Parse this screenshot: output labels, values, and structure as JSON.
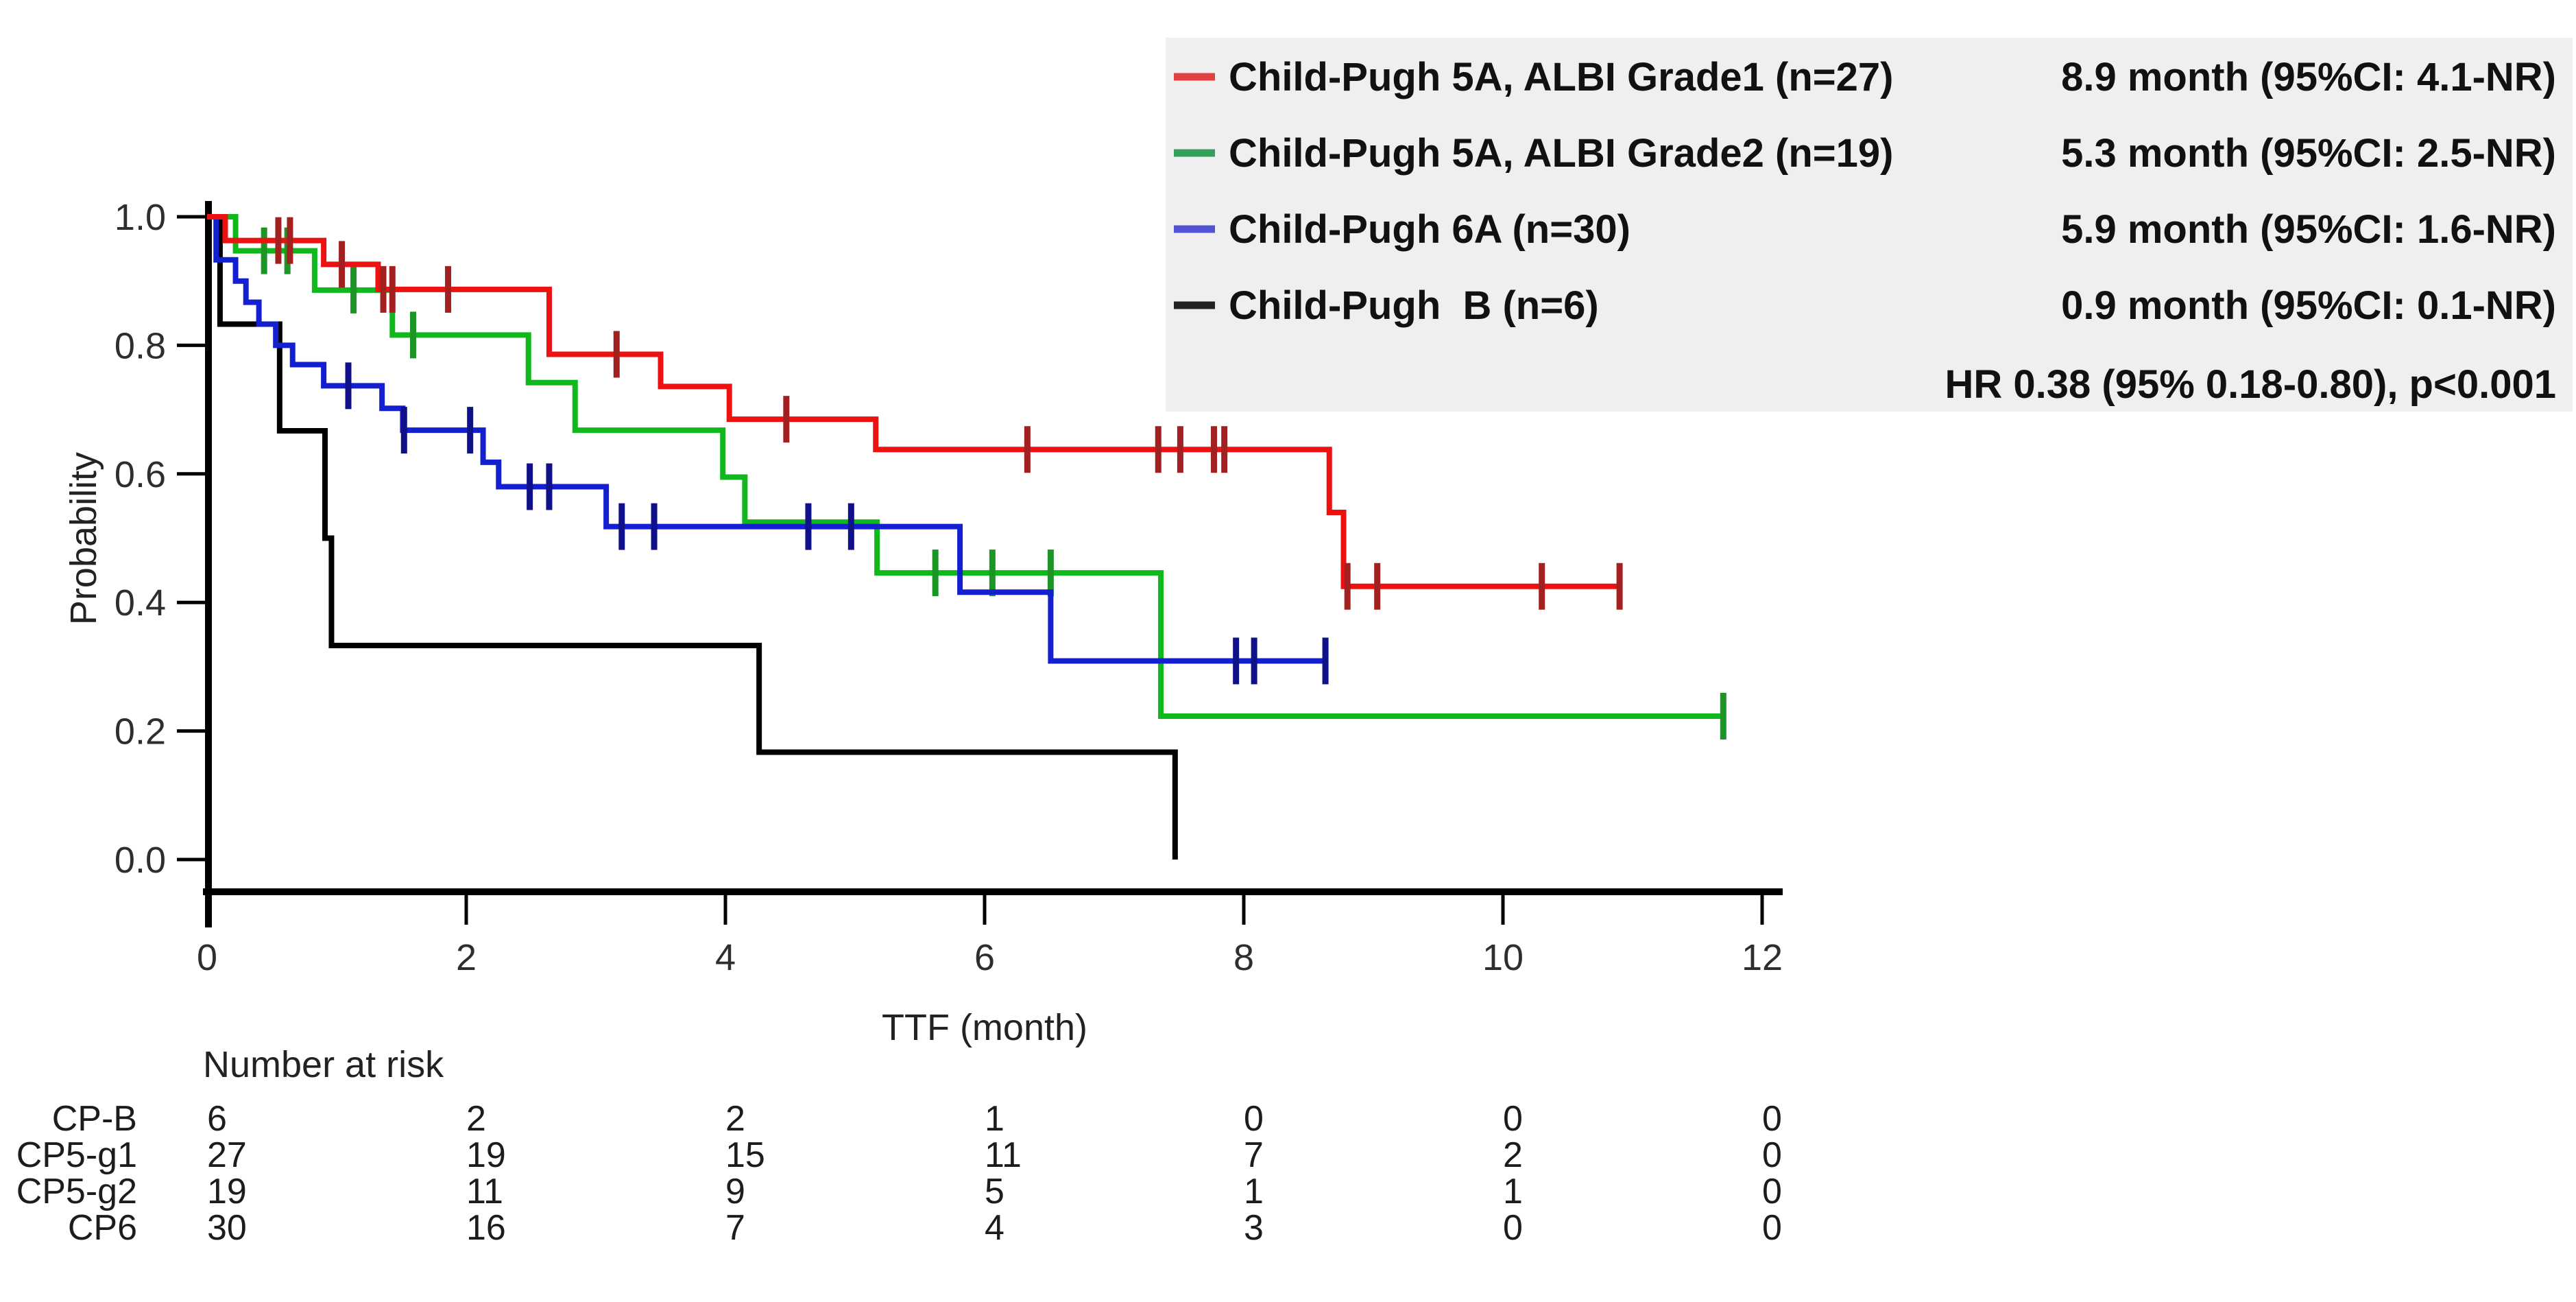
{
  "chart_data": {
    "type": "line",
    "subtype": "kaplan_meier_step",
    "title": "",
    "xlabel": "TTF (month)",
    "ylabel": "Probability",
    "xlim": [
      0,
      12
    ],
    "ylim": [
      0.0,
      1.0
    ],
    "x_ticks": [
      0,
      2,
      4,
      6,
      8,
      10,
      12
    ],
    "y_ticks": [
      "0.0",
      "0.2",
      "0.4",
      "0.6",
      "0.8",
      "1.0"
    ],
    "grid": false,
    "legend_position": "top-right",
    "legend_bg": "#efefef",
    "hr_annotation": "HR 0.38 (95% 0.18-0.80), p<0.001",
    "series": [
      {
        "name": "Child-Pugh 5A, ALBI Grade1 (n=27)",
        "short_name": "CP5-g1",
        "color": "#ec1212",
        "censor_color": "#a32020",
        "legend_swatch_color": "#e04040",
        "median_text": "8.9 month (95%CI: 4.1-NR)",
        "steps": [
          [
            0,
            1.0
          ],
          [
            0.14,
            0.963
          ],
          [
            0.9,
            0.926
          ],
          [
            1.32,
            0.887
          ],
          [
            2.64,
            0.786
          ],
          [
            3.5,
            0.736
          ],
          [
            4.03,
            0.685
          ],
          [
            5.16,
            0.638
          ],
          [
            8.66,
            0.54
          ],
          [
            8.77,
            0.425
          ]
        ],
        "end_t": 10.9,
        "censors": [
          [
            0.55,
            0.963
          ],
          [
            0.64,
            0.963
          ],
          [
            1.04,
            0.926
          ],
          [
            1.36,
            0.887
          ],
          [
            1.43,
            0.887
          ],
          [
            1.86,
            0.887
          ],
          [
            3.16,
            0.786
          ],
          [
            4.47,
            0.685
          ],
          [
            6.33,
            0.638
          ],
          [
            7.34,
            0.638
          ],
          [
            7.51,
            0.638
          ],
          [
            7.77,
            0.638
          ],
          [
            7.85,
            0.638
          ],
          [
            8.8,
            0.425
          ],
          [
            9.03,
            0.425
          ],
          [
            10.3,
            0.425
          ],
          [
            10.9,
            0.425
          ]
        ]
      },
      {
        "name": "Child-Pugh 5A, ALBI Grade2 (n=19)",
        "short_name": "CP5-g2",
        "color": "#10b81e",
        "censor_color": "#1d9426",
        "legend_swatch_color": "#35a05c",
        "median_text": "5.3 month (95%CI: 2.5-NR)",
        "steps": [
          [
            0,
            1.0
          ],
          [
            0.22,
            0.947
          ],
          [
            0.83,
            0.886
          ],
          [
            1.43,
            0.816
          ],
          [
            2.48,
            0.742
          ],
          [
            2.84,
            0.668
          ],
          [
            3.98,
            0.595
          ],
          [
            4.15,
            0.525
          ],
          [
            5.17,
            0.446
          ],
          [
            7.36,
            0.223
          ]
        ],
        "end_t": 11.7,
        "censors": [
          [
            0.44,
            0.947
          ],
          [
            0.62,
            0.947
          ],
          [
            1.13,
            0.886
          ],
          [
            1.59,
            0.816
          ],
          [
            5.62,
            0.446
          ],
          [
            6.06,
            0.446
          ],
          [
            6.51,
            0.446
          ],
          [
            11.7,
            0.223
          ]
        ]
      },
      {
        "name": "Child-Pugh 6A (n=30)",
        "short_name": "CP6",
        "color": "#1420cf",
        "censor_color": "#101089",
        "legend_swatch_color": "#5353d6",
        "median_text": "5.9 month (95%CI: 1.6-NR)",
        "steps": [
          [
            0,
            1.0
          ],
          [
            0.07,
            0.933
          ],
          [
            0.22,
            0.9
          ],
          [
            0.3,
            0.867
          ],
          [
            0.4,
            0.833
          ],
          [
            0.53,
            0.8
          ],
          [
            0.66,
            0.77
          ],
          [
            0.9,
            0.737
          ],
          [
            1.35,
            0.702
          ],
          [
            1.51,
            0.668
          ],
          [
            2.13,
            0.618
          ],
          [
            2.25,
            0.58
          ],
          [
            3.08,
            0.518
          ],
          [
            5.81,
            0.416
          ],
          [
            6.51,
            0.309
          ]
        ],
        "end_t": 8.63,
        "censors": [
          [
            1.09,
            0.737
          ],
          [
            1.52,
            0.668
          ],
          [
            2.03,
            0.668
          ],
          [
            2.49,
            0.58
          ],
          [
            2.64,
            0.58
          ],
          [
            3.2,
            0.518
          ],
          [
            3.45,
            0.518
          ],
          [
            4.64,
            0.518
          ],
          [
            4.97,
            0.518
          ],
          [
            7.94,
            0.309
          ],
          [
            8.08,
            0.309
          ],
          [
            8.63,
            0.309
          ]
        ]
      },
      {
        "name": "Child-Pugh  B (n=6)",
        "short_name": "CP-B",
        "color": "#000000",
        "censor_color": "#000000",
        "legend_swatch_color": "#222222",
        "median_text": "0.9 month (95%CI: 0.1-NR)",
        "steps": [
          [
            0,
            1.0
          ],
          [
            0.1,
            0.833
          ],
          [
            0.56,
            0.667
          ],
          [
            0.91,
            0.5
          ],
          [
            0.96,
            0.333
          ],
          [
            4.26,
            0.167
          ],
          [
            7.47,
            0.0
          ]
        ],
        "end_t": 7.47,
        "censors": []
      }
    ],
    "risk_table": {
      "header": "Number at risk",
      "time_points": [
        0,
        2,
        4,
        6,
        8,
        10,
        12
      ],
      "rows": [
        {
          "label": "CP-B",
          "values": [
            "6",
            "2",
            "2",
            "1",
            "0",
            "0",
            "0"
          ]
        },
        {
          "label": "CP5-g1",
          "values": [
            "27",
            "19",
            "15",
            "11",
            "7",
            "2",
            "0"
          ]
        },
        {
          "label": "CP5-g2",
          "values": [
            "19",
            "11",
            "9",
            "5",
            "1",
            "1",
            "0"
          ]
        },
        {
          "label": "CP6",
          "values": [
            "30",
            "16",
            "7",
            "4",
            "3",
            "0",
            "0"
          ]
        }
      ]
    }
  }
}
